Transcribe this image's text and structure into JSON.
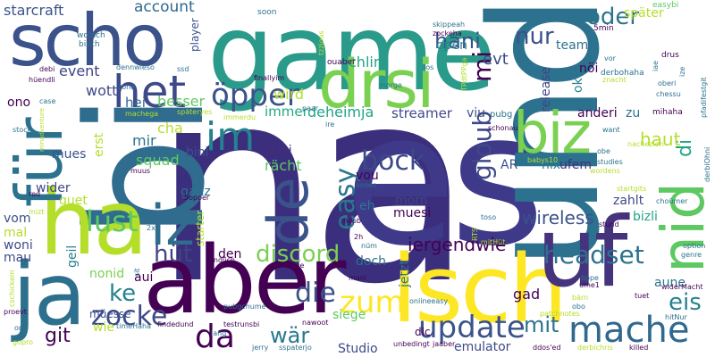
{
  "palette": {
    "background": "#ffffff",
    "purple": "#440154",
    "indigo": "#3b528b",
    "slate": "#2c728e",
    "teal": "#21918c",
    "green": "#27ad81",
    "lime": "#5ec962",
    "yellow": "#fde725"
  },
  "words": [
    {
      "text": "na",
      "color": "#3b2e7c"
    },
    {
      "text": "es",
      "color": "#3e3989"
    },
    {
      "text": "bi",
      "color": "#2f6c8e"
    },
    {
      "text": "und",
      "color": "#2c728e"
    },
    {
      "text": "game",
      "color": "#2a9a8a"
    },
    {
      "text": "aber",
      "color": "#440154"
    },
    {
      "text": "isch",
      "color": "#fde725"
    },
    {
      "text": "uf",
      "color": "#46337e"
    },
    {
      "text": "ha",
      "color": "#b5de2b"
    },
    {
      "text": "ja",
      "color": "#2d708e"
    },
    {
      "text": "scho",
      "color": "#3b528b"
    },
    {
      "text": "für",
      "color": "#2c728e"
    },
    {
      "text": "drsi",
      "color": "#7ad151"
    },
    {
      "text": "nid",
      "color": "#5ec962"
    },
    {
      "text": "biz",
      "color": "#7ad151"
    },
    {
      "text": "iz",
      "color": "#2f6c8e"
    },
    {
      "text": "de",
      "color": "#3b528b"
    },
    {
      "text": "het",
      "color": "#3e4989"
    },
    {
      "text": "mache",
      "color": "#31688e"
    },
    {
      "text": "im",
      "color": "#26828e"
    },
    {
      "text": "update",
      "color": "#3b528b"
    },
    {
      "text": "zum",
      "color": "#fde725"
    },
    {
      "text": "da",
      "color": "#440154"
    },
    {
      "text": "öpper",
      "color": "#3b528b"
    },
    {
      "text": "lust",
      "color": "#5ec962"
    },
    {
      "text": "easy",
      "color": "#2a788e"
    },
    {
      "text": "gloub",
      "color": "#3e4989"
    },
    {
      "text": "bock",
      "color": "#3e4989"
    },
    {
      "text": "headset",
      "color": "#2c728e"
    },
    {
      "text": "zocke",
      "color": "#3e4989"
    },
    {
      "text": "die",
      "color": "#3b528b"
    },
    {
      "text": "mi",
      "color": "#440154"
    },
    {
      "text": "oder",
      "color": "#2c728e"
    },
    {
      "text": "hani",
      "color": "#3b528b"
    },
    {
      "text": "nur",
      "color": "#3b528b"
    },
    {
      "text": "hüt",
      "color": "#414487"
    },
    {
      "text": "discord",
      "color": "#7ad151"
    },
    {
      "text": "wär",
      "color": "#2a788e"
    },
    {
      "text": "ke",
      "color": "#26828e"
    },
    {
      "text": "eis",
      "color": "#26828e"
    },
    {
      "text": "mit",
      "color": "#2c728e"
    },
    {
      "text": "git",
      "color": "#440154"
    },
    {
      "text": "iergendwie",
      "color": "#440154"
    },
    {
      "text": "wireless",
      "color": "#3b528b"
    },
    {
      "text": "di",
      "color": "#20a486"
    },
    {
      "text": "haut",
      "color": "#b5de2b"
    },
    {
      "text": "starcraft",
      "color": "#3b528b"
    },
    {
      "text": "account",
      "color": "#31688e"
    },
    {
      "text": "wott",
      "color": "#3e4989"
    },
    {
      "text": "evt",
      "color": "#3e4989"
    },
    {
      "text": "wird",
      "color": "#b5de2b"
    },
    {
      "text": "event",
      "color": "#414487"
    },
    {
      "text": "chlini",
      "color": "#20a486"
    },
    {
      "text": "hei",
      "color": "#31688e"
    },
    {
      "text": "besser",
      "color": "#5ec962"
    },
    {
      "text": "streamer",
      "color": "#3e4989"
    },
    {
      "text": "deheimja",
      "color": "#20a486"
    },
    {
      "text": "immer",
      "color": "#22a884"
    },
    {
      "text": "cha",
      "color": "#b5de2b"
    },
    {
      "text": "mir",
      "color": "#2c728e"
    },
    {
      "text": "bini",
      "color": "#3b528b"
    },
    {
      "text": "rächt",
      "color": "#5ec962"
    },
    {
      "text": "dasi",
      "color": "#472d7b"
    },
    {
      "text": "squad",
      "color": "#5ec962"
    },
    {
      "text": "mues",
      "color": "#3b528b"
    },
    {
      "text": "wider",
      "color": "#3e4989"
    },
    {
      "text": "vom",
      "color": "#3b528b"
    },
    {
      "text": "mal",
      "color": "#b5de2b"
    },
    {
      "text": "woni",
      "color": "#3e4989"
    },
    {
      "text": "mau",
      "color": "#3e4989"
    },
    {
      "text": "guet",
      "color": "#b5de2b"
    },
    {
      "text": "ganz",
      "color": "#2c728e"
    },
    {
      "text": "bizli",
      "color": "#20a486"
    },
    {
      "text": "zahlt",
      "color": "#3e4989"
    },
    {
      "text": "morn",
      "color": "#414487"
    },
    {
      "text": "muesi",
      "color": "#440154"
    },
    {
      "text": "eh",
      "color": "#2a788e"
    },
    {
      "text": "ufem",
      "color": "#472d7b"
    },
    {
      "text": "nix",
      "color": "#2a788e"
    },
    {
      "text": "AR",
      "color": "#3b528b"
    },
    {
      "text": "vou",
      "color": "#440154"
    },
    {
      "text": "geil",
      "color": "#26828e"
    },
    {
      "text": "nonid",
      "color": "#7ad151"
    },
    {
      "text": "aui",
      "color": "#440154"
    },
    {
      "text": "den",
      "color": "#440154"
    },
    {
      "text": "doch",
      "color": "#2c728e"
    },
    {
      "text": "müesse",
      "color": "#3b528b"
    },
    {
      "text": "wie",
      "color": "#b5de2b"
    },
    {
      "text": "Studio",
      "color": "#3e4989"
    },
    {
      "text": "emulator",
      "color": "#3e4989"
    },
    {
      "text": "gad",
      "color": "#440154"
    },
    {
      "text": "aune",
      "color": "#2c728e"
    },
    {
      "text": "siege",
      "color": "#5ec962"
    },
    {
      "text": "viu",
      "color": "#3b528b"
    },
    {
      "text": "anderi",
      "color": "#440154"
    },
    {
      "text": "zu",
      "color": "#2c728e"
    },
    {
      "text": "erst",
      "color": "#b5de2b"
    },
    {
      "text": "release",
      "color": "#414487"
    },
    {
      "text": "open",
      "color": "#26828e"
    },
    {
      "text": "teams",
      "color": "#2c728e"
    },
    {
      "text": "später",
      "color": "#b5de2b"
    },
    {
      "text": "nöi",
      "color": "#440154"
    },
    {
      "text": "ok",
      "color": "#26828e"
    },
    {
      "text": "ono",
      "color": "#440154"
    },
    {
      "text": "player",
      "color": "#3b528b"
    },
    {
      "text": "jetzt",
      "color": "#2c728e"
    },
    {
      "text": "starter",
      "color": "#b5de2b"
    },
    {
      "text": "pubg",
      "color": "#2c728e"
    },
    {
      "text": "dlc",
      "color": "#440154"
    },
    {
      "text": "soon",
      "color": "#2c728e"
    },
    {
      "text": "wotsch",
      "color": "#2c728e"
    },
    {
      "text": "bisch",
      "color": "#2c728e"
    },
    {
      "text": "easybi",
      "color": "#5ec962"
    },
    {
      "text": "skippeah",
      "color": "#2c728e"
    },
    {
      "text": "zockeha",
      "color": "#440154"
    },
    {
      "text": "5min",
      "color": "#440154"
    },
    {
      "text": "tzzjoas",
      "color": "#b5de2b"
    },
    {
      "text": "ouaber",
      "color": "#440154"
    },
    {
      "text": "drus",
      "color": "#440154"
    },
    {
      "text": "vor",
      "color": "#2c728e"
    },
    {
      "text": "iae",
      "color": "#2c728e"
    },
    {
      "text": "ize",
      "color": "#2c728e"
    },
    {
      "text": "oberi",
      "color": "#2c728e"
    },
    {
      "text": "derbohaha",
      "color": "#2c728e"
    },
    {
      "text": "TPdtPPga",
      "color": "#b5de2b"
    },
    {
      "text": "znacht",
      "color": "#b5de2b"
    },
    {
      "text": "los",
      "color": "#2c728e"
    },
    {
      "text": "dennwieso",
      "color": "#2c728e"
    },
    {
      "text": "ssd",
      "color": "#2c728e"
    },
    {
      "text": "finallyim",
      "color": "#440154"
    },
    {
      "text": "morge",
      "color": "#2c728e"
    },
    {
      "text": "debi",
      "color": "#440154"
    },
    {
      "text": "hüendli",
      "color": "#440154"
    },
    {
      "text": "zone",
      "color": "#2c728e"
    },
    {
      "text": "chessu",
      "color": "#2c728e"
    },
    {
      "text": "pfadifestgit",
      "color": "#2c728e"
    },
    {
      "text": "mihaha",
      "color": "#440154"
    },
    {
      "text": "case",
      "color": "#2c728e"
    },
    {
      "text": "machega",
      "color": "#b5de2b"
    },
    {
      "text": "späteryes",
      "color": "#b5de2b"
    },
    {
      "text": "immerdu",
      "color": "#b5de2b"
    },
    {
      "text": "paar",
      "color": "#2c728e"
    },
    {
      "text": "ire",
      "color": "#2c728e"
    },
    {
      "text": "schonau",
      "color": "#440154"
    },
    {
      "text": "want",
      "color": "#2c728e"
    },
    {
      "text": "obe",
      "color": "#2c728e"
    },
    {
      "text": "nachezien",
      "color": "#b5de2b"
    },
    {
      "text": "stock",
      "color": "#2c728e"
    },
    {
      "text": "minadventure",
      "color": "#b5de2b"
    },
    {
      "text": "babys10",
      "color": "#b5de2b"
    },
    {
      "text": "studies",
      "color": "#2c728e"
    },
    {
      "text": "wordens",
      "color": "#b5de2b"
    },
    {
      "text": "derbiOhni",
      "color": "#2c728e"
    },
    {
      "text": "muus",
      "color": "#440154"
    },
    {
      "text": "red",
      "color": "#440154"
    },
    {
      "text": "sones",
      "color": "#2c728e"
    },
    {
      "text": "dä",
      "color": "#2c728e"
    },
    {
      "text": "choümer",
      "color": "#2c728e"
    },
    {
      "text": "mizt",
      "color": "#b5de2b"
    },
    {
      "text": "startgits",
      "color": "#b5de2b"
    },
    {
      "text": "5opoer",
      "color": "#440154"
    },
    {
      "text": "toso",
      "color": "#2c728e"
    },
    {
      "text": "stund",
      "color": "#440154"
    },
    {
      "text": "noob",
      "color": "#440154"
    },
    {
      "text": "2x",
      "color": "#2c728e"
    },
    {
      "text": "2h",
      "color": "#440154"
    },
    {
      "text": "nüm",
      "color": "#2c728e"
    },
    {
      "text": "RTS",
      "color": "#b5de2b"
    },
    {
      "text": "mitHüt",
      "color": "#b5de2b"
    },
    {
      "text": "option",
      "color": "#2c728e"
    },
    {
      "text": "genre",
      "color": "#2c728e"
    },
    {
      "text": "sit",
      "color": "#2c728e"
    },
    {
      "text": "ändlich",
      "color": "#440154"
    },
    {
      "text": "dinne",
      "color": "#440154"
    },
    {
      "text": "cschickem",
      "color": "#b5de2b"
    },
    {
      "text": "mani",
      "color": "#440154"
    },
    {
      "text": "öppe",
      "color": "#2c728e"
    },
    {
      "text": "ume1",
      "color": "#440154"
    },
    {
      "text": "bärn",
      "color": "#b5de2b"
    },
    {
      "text": "widerMacht",
      "color": "#440154"
    },
    {
      "text": "tuet",
      "color": "#440154"
    },
    {
      "text": "proevt",
      "color": "#440154"
    },
    {
      "text": "onlineeasy",
      "color": "#2c728e"
    },
    {
      "text": "pubgchume",
      "color": "#2c728e"
    },
    {
      "text": "testrunsbi",
      "color": "#440154"
    },
    {
      "text": "patchnotes",
      "color": "#b5de2b"
    },
    {
      "text": "obo",
      "color": "#2c728e"
    },
    {
      "text": "hitNur",
      "color": "#2c728e"
    },
    {
      "text": "one",
      "color": "#2c728e"
    },
    {
      "text": "nawoot",
      "color": "#440154"
    },
    {
      "text": "timeHaha",
      "color": "#2c728e"
    },
    {
      "text": "findedund",
      "color": "#440154"
    },
    {
      "text": "lang",
      "color": "#2c728e"
    },
    {
      "text": "gopro",
      "color": "#b5de2b"
    },
    {
      "text": "jerry",
      "color": "#2c728e"
    },
    {
      "text": "sspaterjo",
      "color": "#2c728e"
    },
    {
      "text": "unbedingt",
      "color": "#440154"
    },
    {
      "text": "jaaber",
      "color": "#440154"
    },
    {
      "text": "ddos'ed",
      "color": "#440154"
    },
    {
      "text": "derbichris",
      "color": "#b5de2b"
    },
    {
      "text": "killed",
      "color": "#440154"
    }
  ]
}
